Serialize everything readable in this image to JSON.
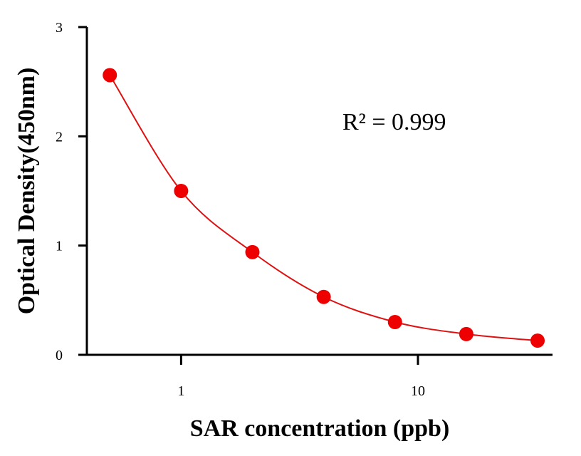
{
  "chart_data": {
    "type": "scatter",
    "x_scale": "log",
    "xlabel": "SAR concentration (ppb)",
    "ylabel": "Optical Density(450nm)",
    "xlim": [
      0.4,
      37
    ],
    "ylim": [
      0,
      3
    ],
    "x_ticks": [
      {
        "value": 1,
        "label": "1"
      },
      {
        "value": 10,
        "label": "10"
      }
    ],
    "y_ticks": [
      {
        "value": 0,
        "label": "0"
      },
      {
        "value": 1,
        "label": "1"
      },
      {
        "value": 2,
        "label": "2"
      },
      {
        "value": 3,
        "label": "3"
      }
    ],
    "series": [
      {
        "x": [
          0.5,
          1,
          2,
          4,
          8,
          16,
          32
        ],
        "y": [
          2.56,
          1.5,
          0.94,
          0.53,
          0.3,
          0.19,
          0.13
        ],
        "marker": "circle",
        "color": "#ee0000",
        "fit_line": true,
        "fit_color": "#dd1111"
      }
    ],
    "annotation": "R² = 0.999",
    "grid": false,
    "legend": "none"
  }
}
